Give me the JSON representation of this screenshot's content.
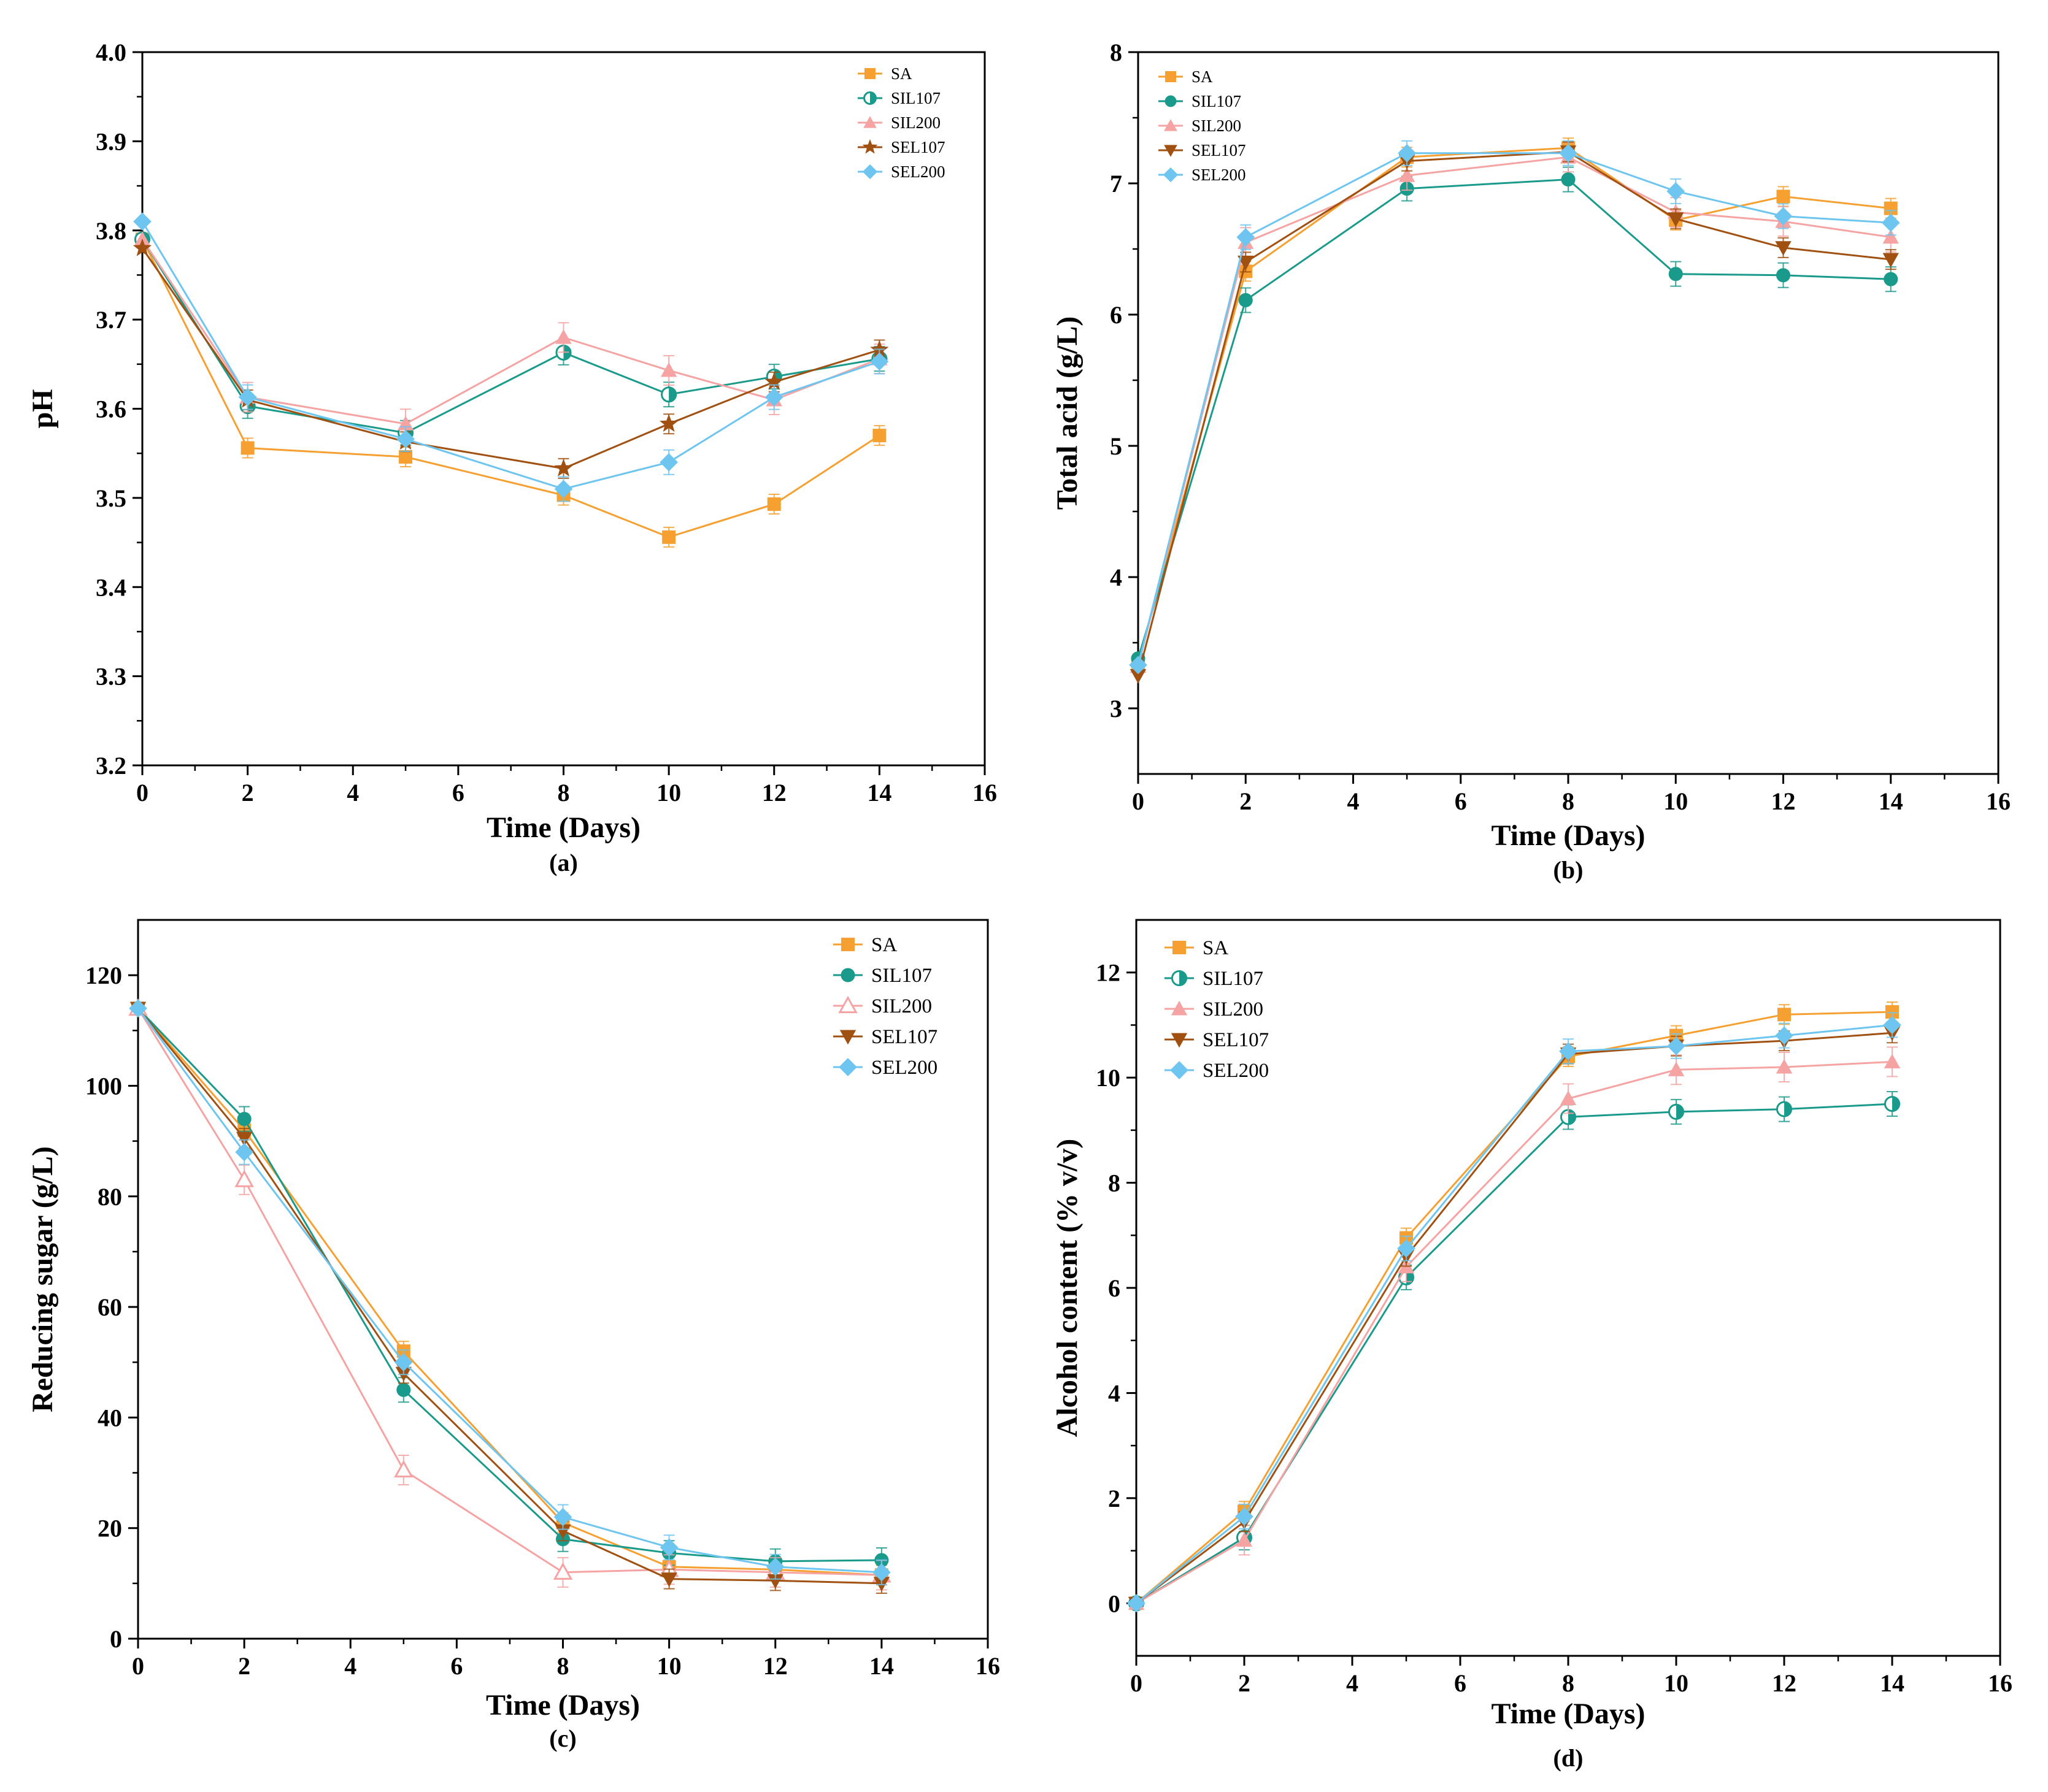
{
  "chart_data": [
    {
      "type": "line",
      "panel_label": "(a)",
      "xlabel": "Time (Days)",
      "ylabel": "pH",
      "xlim": [
        0,
        16
      ],
      "ylim": [
        3.2,
        4.0
      ],
      "xticks": [
        "0",
        "2",
        "4",
        "6",
        "8",
        "10",
        "12",
        "14",
        "16"
      ],
      "yticks": [
        "3.2",
        "3.3",
        "3.4",
        "3.5",
        "3.6",
        "3.7",
        "3.8",
        "3.9",
        "4.0"
      ],
      "legend_position": "top-right",
      "x": [
        0,
        2,
        5,
        8,
        10,
        12,
        14
      ],
      "series": [
        {
          "name": "SA",
          "color": "#F5A030",
          "marker": "square",
          "values": [
            3.79,
            3.556,
            3.546,
            3.503,
            3.456,
            3.493,
            3.57
          ]
        },
        {
          "name": "SIL107",
          "color": "#1A9A8A",
          "marker": "half-circle",
          "values": [
            3.79,
            3.603,
            3.573,
            3.663,
            3.616,
            3.636,
            3.656
          ]
        },
        {
          "name": "SIL200",
          "color": "#F5A3A3",
          "marker": "triangle",
          "values": [
            3.79,
            3.613,
            3.583,
            3.68,
            3.643,
            3.61,
            3.656
          ]
        },
        {
          "name": "SEL107",
          "color": "#A05010",
          "marker": "star",
          "values": [
            3.78,
            3.61,
            3.563,
            3.533,
            3.583,
            3.63,
            3.666
          ]
        },
        {
          "name": "SEL200",
          "color": "#6EC6F0",
          "marker": "diamond",
          "values": [
            3.81,
            3.613,
            3.566,
            3.51,
            3.54,
            3.613,
            3.653
          ]
        }
      ]
    },
    {
      "type": "line",
      "panel_label": "(b)",
      "xlabel": "Time (Days)",
      "ylabel": "Total acid (g/L)",
      "xlim": [
        0,
        16
      ],
      "ylim": [
        2.5,
        8
      ],
      "xticks": [
        "0",
        "2",
        "4",
        "6",
        "8",
        "10",
        "12",
        "14",
        "16"
      ],
      "yticks": [
        "3",
        "4",
        "5",
        "6",
        "7",
        "8"
      ],
      "legend_position": "top-left",
      "x": [
        0,
        2,
        5,
        8,
        10,
        12,
        14
      ],
      "series": [
        {
          "name": "SA",
          "color": "#F5A030",
          "marker": "square",
          "values": [
            3.35,
            6.33,
            7.2,
            7.27,
            6.72,
            6.9,
            6.81
          ]
        },
        {
          "name": "SIL107",
          "color": "#1A9A8A",
          "marker": "circle",
          "values": [
            3.38,
            6.11,
            6.96,
            7.03,
            6.31,
            6.3,
            6.27
          ]
        },
        {
          "name": "SIL200",
          "color": "#F5A3A3",
          "marker": "triangle",
          "values": [
            3.32,
            6.55,
            7.06,
            7.2,
            6.78,
            6.71,
            6.59
          ]
        },
        {
          "name": "SEL107",
          "color": "#A05010",
          "marker": "triangle-down",
          "values": [
            3.25,
            6.4,
            7.17,
            7.24,
            6.73,
            6.51,
            6.42
          ]
        },
        {
          "name": "SEL200",
          "color": "#6EC6F0",
          "marker": "diamond",
          "values": [
            3.33,
            6.59,
            7.23,
            7.23,
            6.94,
            6.75,
            6.7
          ]
        }
      ]
    },
    {
      "type": "line",
      "panel_label": "(c)",
      "xlabel": "Time (Days)",
      "ylabel": "Reducing sugar (g/L)",
      "xlim": [
        0,
        16
      ],
      "ylim": [
        0,
        130
      ],
      "xticks": [
        "0",
        "2",
        "4",
        "6",
        "8",
        "10",
        "12",
        "14",
        "16"
      ],
      "yticks": [
        "0",
        "20",
        "40",
        "60",
        "80",
        "100",
        "120"
      ],
      "legend_position": "top-right",
      "x": [
        0,
        2,
        5,
        8,
        10,
        12,
        14
      ],
      "series": [
        {
          "name": "SA",
          "color": "#F5A030",
          "marker": "square",
          "values": [
            114,
            92,
            52,
            21,
            13,
            12.5,
            11.5
          ]
        },
        {
          "name": "SIL107",
          "color": "#1A9A8A",
          "marker": "circle",
          "values": [
            114,
            94,
            45,
            18,
            15.5,
            14,
            14.2
          ]
        },
        {
          "name": "SIL200",
          "color": "#F5A3A3",
          "marker": "triangle-open",
          "values": [
            114,
            83,
            30.5,
            12,
            12.5,
            12,
            11.5
          ]
        },
        {
          "name": "SEL107",
          "color": "#A05010",
          "marker": "triangle-down",
          "values": [
            114,
            90.5,
            48,
            19.5,
            10.8,
            10.5,
            10
          ]
        },
        {
          "name": "SEL200",
          "color": "#6EC6F0",
          "marker": "diamond",
          "values": [
            114,
            88,
            50,
            22,
            16.5,
            13,
            12
          ]
        }
      ]
    },
    {
      "type": "line",
      "panel_label": "(d)",
      "xlabel": "Time (Days)",
      "ylabel": "Alcohol content (% v/v)",
      "xlim": [
        0,
        16
      ],
      "ylim": [
        -1,
        13
      ],
      "xticks": [
        "0",
        "2",
        "4",
        "6",
        "8",
        "10",
        "12",
        "14",
        "16"
      ],
      "yticks": [
        "0",
        "2",
        "4",
        "6",
        "8",
        "10",
        "12"
      ],
      "legend_position": "top-left",
      "x": [
        0,
        2,
        5,
        8,
        10,
        12,
        14
      ],
      "series": [
        {
          "name": "SA",
          "color": "#F5A030",
          "marker": "square",
          "values": [
            0,
            1.75,
            6.95,
            10.4,
            10.8,
            11.2,
            11.25
          ]
        },
        {
          "name": "SIL107",
          "color": "#1A9A8A",
          "marker": "half-circle",
          "values": [
            0,
            1.25,
            6.2,
            9.25,
            9.35,
            9.4,
            9.5
          ]
        },
        {
          "name": "SIL200",
          "color": "#F5A3A3",
          "marker": "triangle",
          "values": [
            0,
            1.2,
            6.4,
            9.6,
            10.15,
            10.2,
            10.3
          ]
        },
        {
          "name": "SEL107",
          "color": "#A05010",
          "marker": "triangle-down",
          "values": [
            0,
            1.55,
            6.6,
            10.45,
            10.6,
            10.7,
            10.85
          ]
        },
        {
          "name": "SEL200",
          "color": "#6EC6F0",
          "marker": "diamond",
          "values": [
            0,
            1.65,
            6.75,
            10.5,
            10.6,
            10.8,
            11.0
          ]
        }
      ]
    }
  ]
}
